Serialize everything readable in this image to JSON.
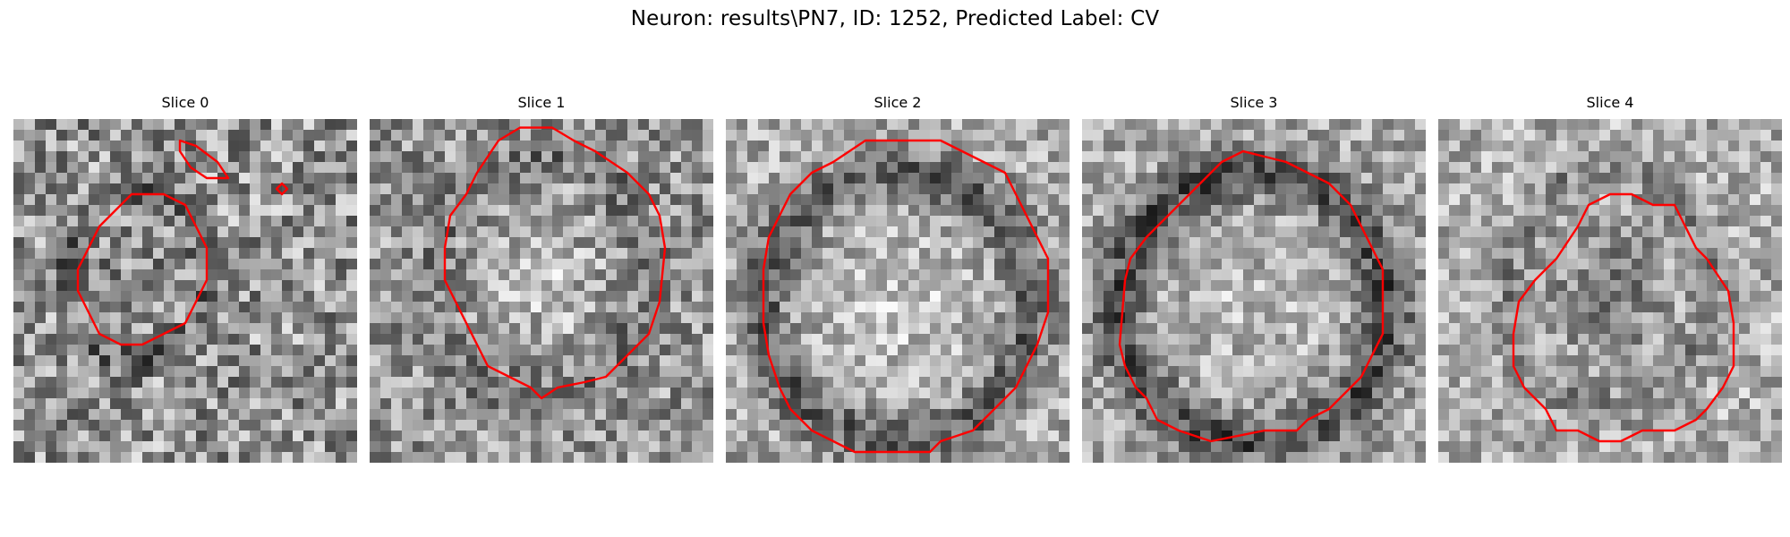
{
  "figure": {
    "suptitle": "Neuron: results\\PN7, ID: 1252, Predicted Label: CV",
    "contour_color": "#ff0000",
    "colormap": "gray"
  },
  "panels": [
    {
      "title": "Slice 0"
    },
    {
      "title": "Slice 1"
    },
    {
      "title": "Slice 2"
    },
    {
      "title": "Slice 3"
    },
    {
      "title": "Slice 4"
    }
  ]
}
